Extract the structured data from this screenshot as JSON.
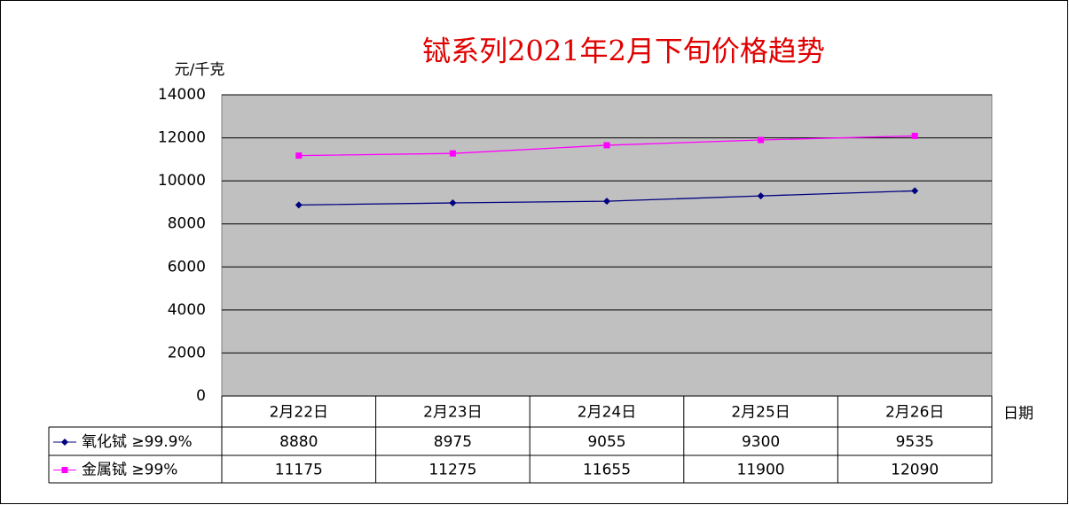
{
  "chart_data": {
    "type": "line",
    "title": "铽系列2021年2月下旬价格趋势",
    "y_label": "元/千克",
    "x_label": "日期",
    "categories": [
      "2月22日",
      "2月23日",
      "2月24日",
      "2月25日",
      "2月26日"
    ],
    "series": [
      {
        "name": "氧化铽 ≥99.9%",
        "color": "#000080",
        "marker": "diamond",
        "values": [
          8880,
          8975,
          9055,
          9300,
          9535
        ]
      },
      {
        "name": "金属铽 ≥99%",
        "color": "#ff00ff",
        "marker": "square",
        "values": [
          11175,
          11275,
          11655,
          11900,
          12090
        ]
      }
    ],
    "ylim": [
      0,
      14000
    ],
    "yticks": [
      0,
      2000,
      4000,
      6000,
      8000,
      10000,
      12000,
      14000
    ],
    "grid": true,
    "plot_background": "#c0c0c0"
  }
}
